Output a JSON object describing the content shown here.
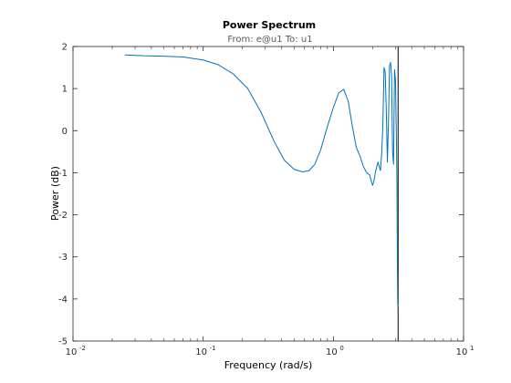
{
  "chart_data": {
    "type": "line",
    "title": "Power Spectrum",
    "subtitle": "From: e@u1  To: u1",
    "xlabel": "Frequency  (rad/s)",
    "ylabel": "Power (dB)",
    "xscale": "log",
    "xlim": [
      0.01,
      10
    ],
    "ylim": [
      -5,
      2
    ],
    "xticks": [
      0.01,
      0.1,
      1,
      10
    ],
    "xtick_labels": [
      {
        "base": "10",
        "exp": "-2"
      },
      {
        "base": "10",
        "exp": "-1"
      },
      {
        "base": "10",
        "exp": "0"
      },
      {
        "base": "10",
        "exp": "1"
      }
    ],
    "yticks": [
      2,
      1,
      0,
      -1,
      -2,
      -3,
      -4,
      -5
    ],
    "ytick_labels": [
      "2",
      "1",
      "0",
      "-1",
      "-2",
      "-3",
      "-4",
      "-5"
    ],
    "grid": false,
    "series": [
      {
        "color": "#0072bd",
        "x": [
          0.025,
          0.035,
          0.05,
          0.07,
          0.1,
          0.13,
          0.17,
          0.22,
          0.28,
          0.35,
          0.42,
          0.5,
          0.58,
          0.65,
          0.72,
          0.8,
          0.9,
          1.0,
          1.1,
          1.2,
          1.3,
          1.4,
          1.5,
          1.6,
          1.7,
          1.8,
          1.9,
          2.0,
          2.05,
          2.1,
          2.2,
          2.3,
          2.35,
          2.4,
          2.45,
          2.5,
          2.55,
          2.6,
          2.65,
          2.7,
          2.75,
          2.8,
          2.85,
          2.9,
          2.95,
          3.0,
          3.05,
          3.08,
          3.1,
          3.12,
          3.14
        ],
        "y": [
          1.8,
          1.78,
          1.77,
          1.75,
          1.68,
          1.57,
          1.35,
          1.0,
          0.42,
          -0.25,
          -0.7,
          -0.92,
          -0.98,
          -0.95,
          -0.8,
          -0.45,
          0.1,
          0.55,
          0.9,
          0.98,
          0.7,
          0.1,
          -0.4,
          -0.6,
          -0.85,
          -1.0,
          -1.05,
          -1.3,
          -1.2,
          -1.0,
          -0.75,
          -0.95,
          -0.55,
          0.1,
          1.5,
          1.4,
          0.5,
          -0.75,
          0.2,
          1.55,
          1.62,
          1.3,
          -0.5,
          -0.8,
          1.45,
          1.2,
          -0.2,
          -1.3,
          -3.0,
          -4.1,
          -4.2
        ]
      }
    ],
    "annotations": [
      {
        "type": "vertical-line",
        "x": 3.1416,
        "color": "#000000"
      }
    ]
  }
}
